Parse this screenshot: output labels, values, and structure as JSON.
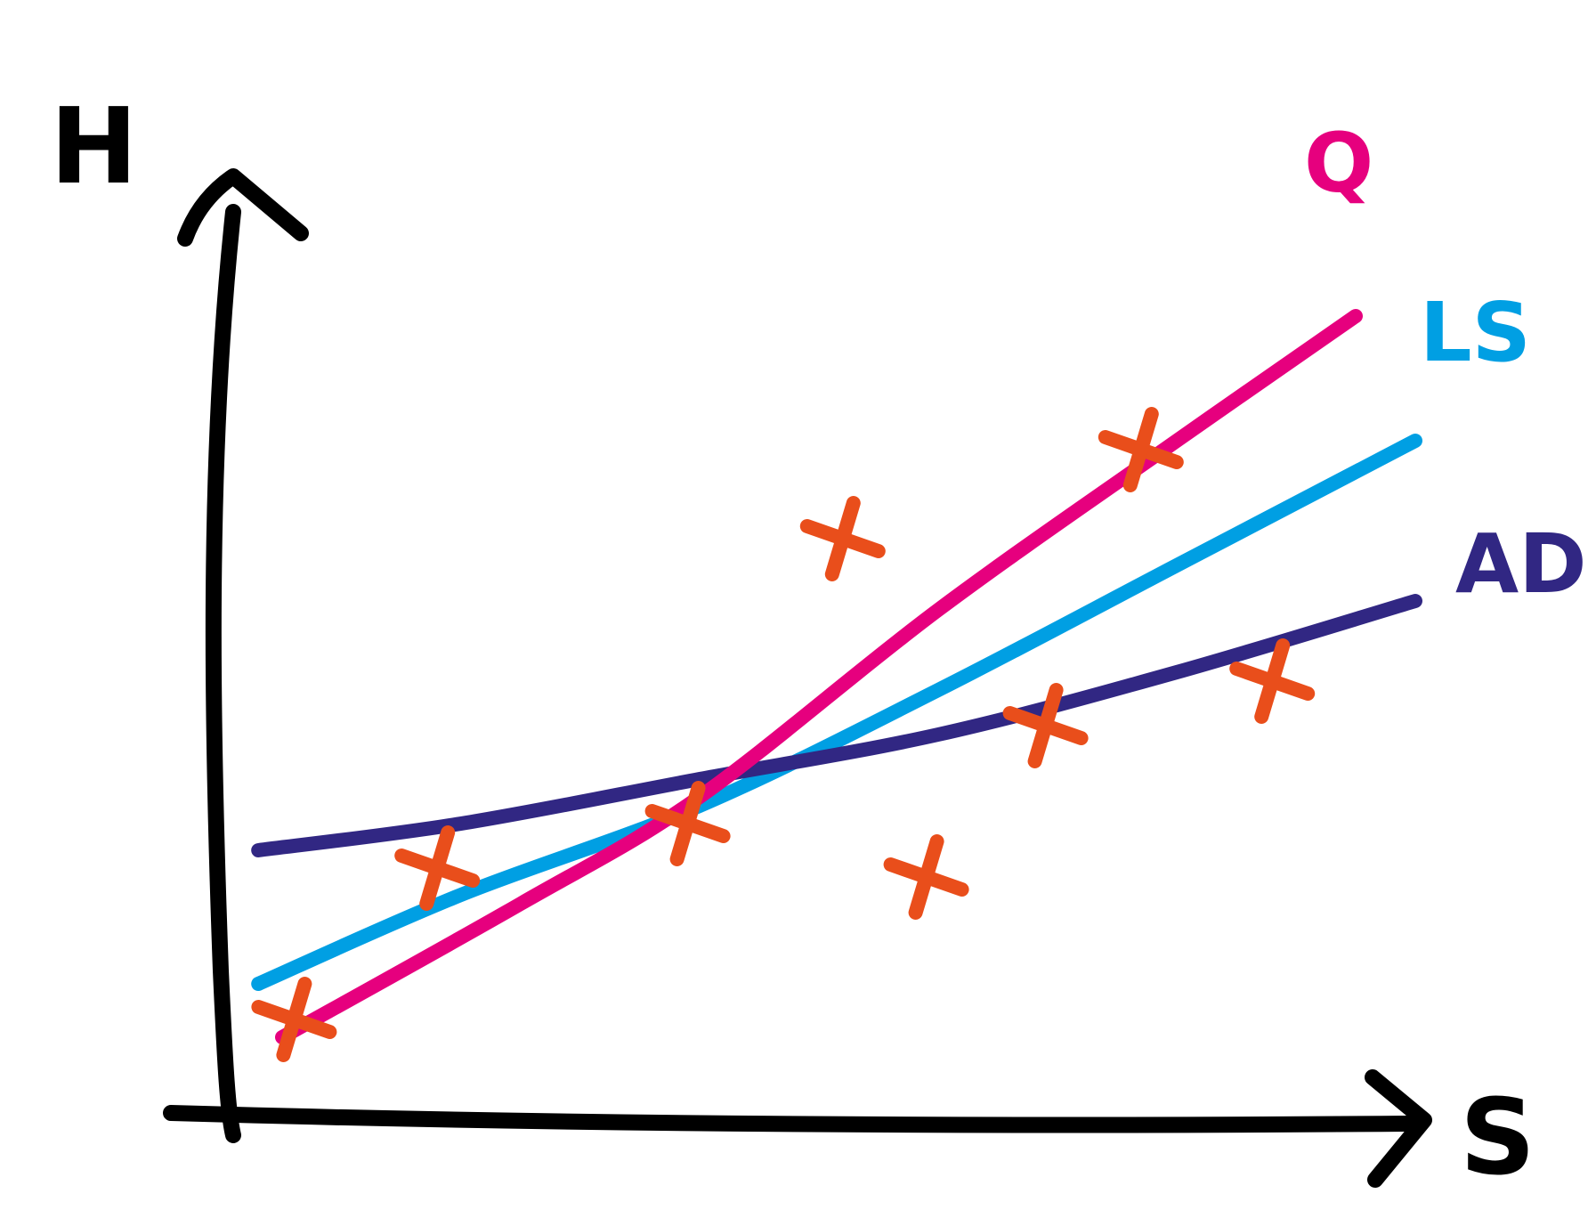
{
  "chart_data": {
    "type": "scatter",
    "title": "",
    "xlabel": "S",
    "ylabel": "H",
    "xlim": [
      0,
      10
    ],
    "ylim": [
      0,
      10
    ],
    "grid": false,
    "legend": "right",
    "points": {
      "marker": "x",
      "color": "#e94e1b",
      "x": [
        0.6,
        1.8,
        3.9,
        5.2,
        5.9,
        6.9,
        7.7,
        8.8
      ],
      "y": [
        1.1,
        2.8,
        3.3,
        6.5,
        2.7,
        4.4,
        7.5,
        4.9
      ]
    },
    "series": [
      {
        "name": "Q",
        "color": "#e6007e",
        "x": [
          0.5,
          2.5,
          4.0,
          6.0,
          8.0,
          9.5
        ],
        "y": [
          0.9,
          2.4,
          3.6,
          5.7,
          7.6,
          9.0
        ]
      },
      {
        "name": "LS",
        "color": "#009fe3",
        "x": [
          0.3,
          2.0,
          4.0,
          6.0,
          8.0,
          10.0
        ],
        "y": [
          1.5,
          2.5,
          3.5,
          4.8,
          6.2,
          7.6
        ]
      },
      {
        "name": "AD",
        "color": "#312783",
        "x": [
          0.3,
          2.0,
          4.0,
          6.0,
          8.0,
          10.0
        ],
        "y": [
          3.0,
          3.3,
          3.8,
          4.3,
          5.0,
          5.8
        ]
      }
    ]
  }
}
